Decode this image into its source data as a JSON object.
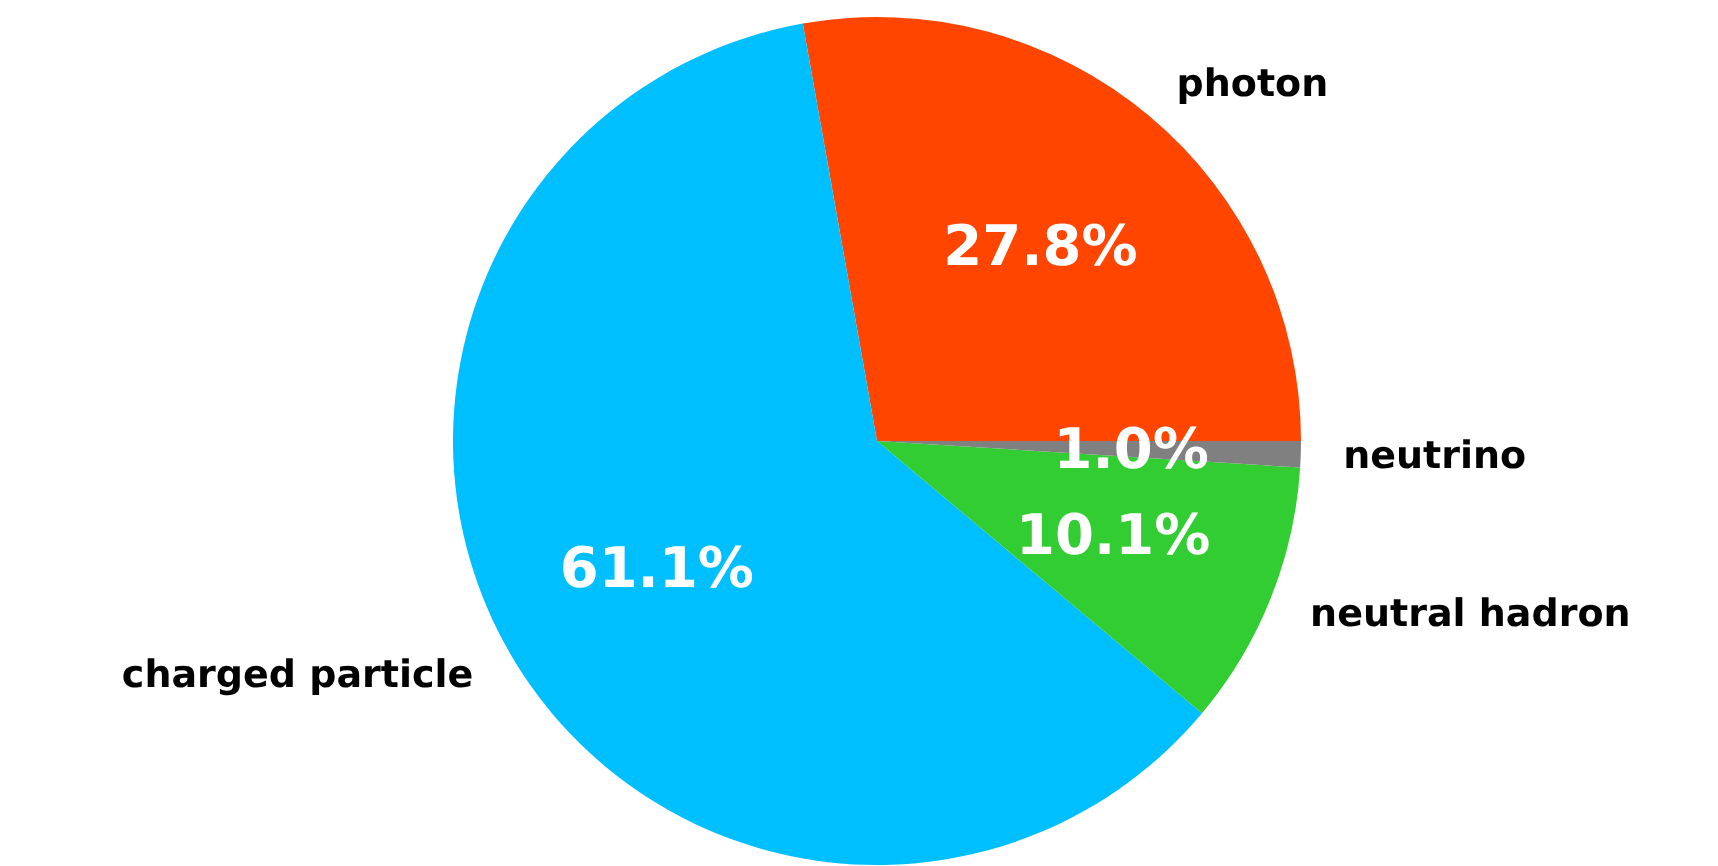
{
  "chart_data": {
    "type": "pie",
    "categories": [
      "photon",
      "charged particle",
      "neutral hadron",
      "neutrino"
    ],
    "values": [
      27.8,
      61.1,
      10.1,
      1.0
    ],
    "colors": [
      "#ff4500",
      "#00bfff",
      "#32cd32",
      "#808080"
    ],
    "value_labels": [
      "27.8%",
      "61.1%",
      "10.1%",
      "1.0%"
    ]
  }
}
